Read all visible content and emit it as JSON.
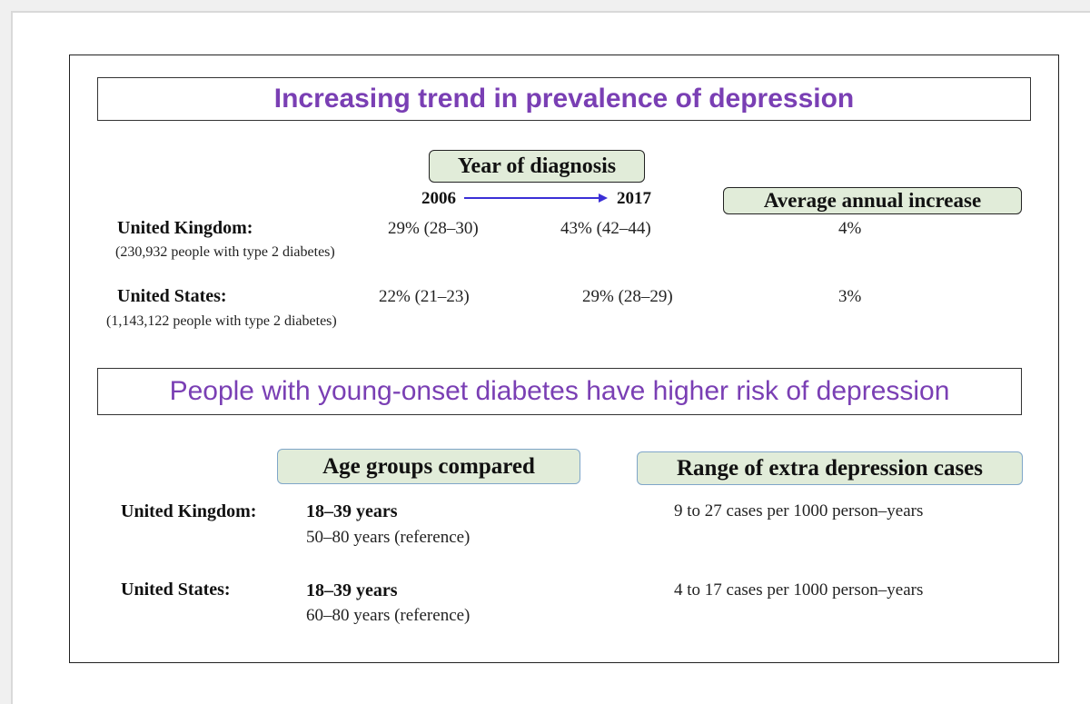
{
  "section1": {
    "title": "Increasing trend in prevalence of depression",
    "year_header": "Year of diagnosis",
    "year_start": "2006",
    "year_end": "2017",
    "increase_header": "Average annual increase",
    "rows": [
      {
        "country": "United Kingdom:",
        "note": "(230,932 people with type 2 diabetes)",
        "v2006": "29% (28–30)",
        "v2017": "43% (42–44)",
        "increase": "4%"
      },
      {
        "country": "United States:",
        "note": "(1,143,122 people with type 2 diabetes)",
        "v2006": "22% (21–23)",
        "v2017": "29% (28–29)",
        "increase": "3%"
      }
    ]
  },
  "section2": {
    "title": "People with young-onset diabetes have higher risk of depression",
    "age_header": "Age groups compared",
    "range_header": "Range of extra depression cases",
    "rows": [
      {
        "country": "United Kingdom:",
        "age_primary": "18–39 years",
        "age_reference": "50–80 years (reference)",
        "range": "9 to 27 cases per 1000 person–years"
      },
      {
        "country": "United States:",
        "age_primary": "18–39 years",
        "age_reference": "60–80 years (reference)",
        "range": "4 to 17  cases per 1000 person–years"
      }
    ]
  },
  "colors": {
    "title_purple": "#7a3fb4",
    "header_green": "#e1ecd9",
    "arrow_blue": "#3b2fd6"
  }
}
